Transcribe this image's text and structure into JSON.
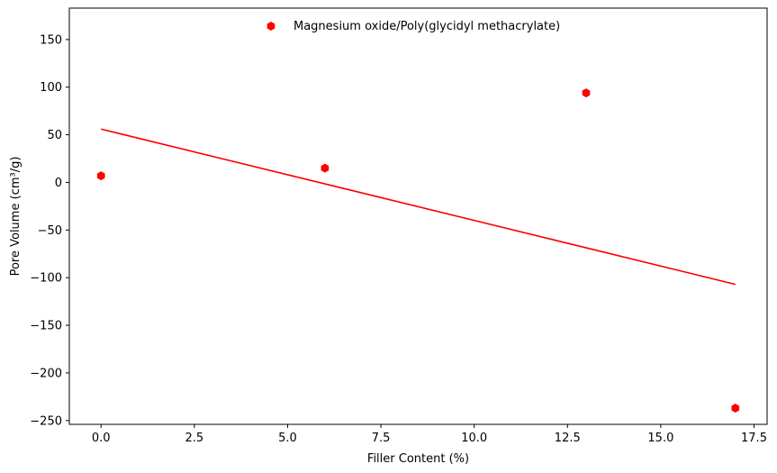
{
  "chart_data": {
    "type": "scatter",
    "xlabel": "Filler Content (%)",
    "ylabel": "Pore Volume (cm³/g)",
    "xlim": [
      -0.85,
      17.85
    ],
    "ylim": [
      -254,
      183
    ],
    "x_ticks": [
      0.0,
      2.5,
      5.0,
      7.5,
      10.0,
      12.5,
      15.0,
      17.5
    ],
    "x_tick_labels": [
      "0.0",
      "2.5",
      "5.0",
      "7.5",
      "10.0",
      "12.5",
      "15.0",
      "17.5"
    ],
    "y_ticks": [
      -250,
      -200,
      -150,
      -100,
      -50,
      0,
      50,
      100,
      150
    ],
    "y_tick_labels": [
      "−250",
      "−200",
      "−150",
      "−100",
      "−50",
      "0",
      "50",
      "100",
      "150"
    ],
    "grid": false,
    "legend_position": "top-center",
    "series": [
      {
        "name": "Magnesium oxide/Poly(glycidyl methacrylate)",
        "color": "#ff0000",
        "marker": "hexagon",
        "x": [
          0,
          6,
          13,
          17
        ],
        "y": [
          7,
          15,
          94,
          -237
        ]
      }
    ],
    "trendline": {
      "color": "#ff0000",
      "x": [
        0,
        17
      ],
      "y": [
        56,
        -107
      ]
    }
  }
}
